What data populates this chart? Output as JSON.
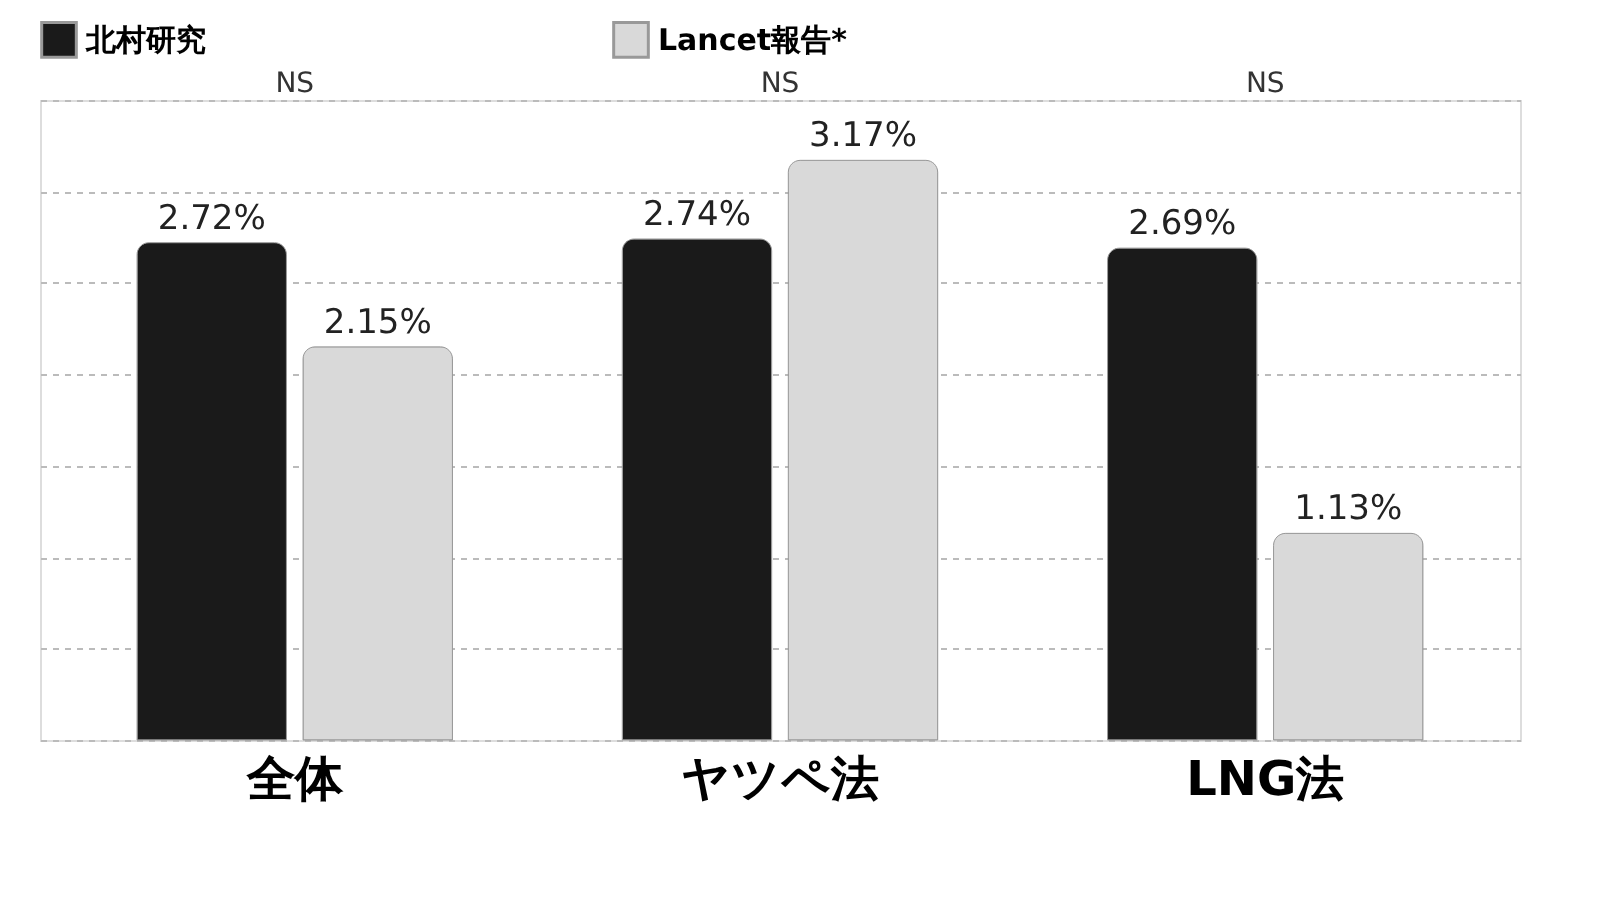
{
  "chart_data": {
    "type": "bar",
    "categories": [
      "全体",
      "ヤツペ法",
      "LNG法"
    ],
    "series": [
      {
        "name": "北村研究",
        "color": "#1a1a1a",
        "values": [
          2.72,
          2.74,
          2.69
        ],
        "value_labels": [
          "2.72%",
          "2.74%",
          "2.69%"
        ]
      },
      {
        "name": "Lancet報告*",
        "color": "#d9d9d9",
        "values": [
          2.15,
          3.17,
          1.13
        ],
        "value_labels": [
          "2.15%",
          "3.17%",
          "1.13%"
        ]
      }
    ],
    "ylim": [
      0,
      3.5
    ],
    "yticks": [
      {
        "value": 0,
        "label": null
      },
      {
        "value": 0.5,
        "label": null
      },
      {
        "value": 1,
        "label": null
      },
      {
        "value": 1.5,
        "label": null
      },
      {
        "value": 2,
        "label": null
      },
      {
        "value": 2.5,
        "label": null
      },
      {
        "value": 3,
        "label": null
      },
      {
        "value": 3.5,
        "label": null
      }
    ],
    "tick_labels": "x",
    "grid": "y",
    "legend": "top",
    "annotations": [
      "NS",
      "NS",
      "NS"
    ]
  }
}
